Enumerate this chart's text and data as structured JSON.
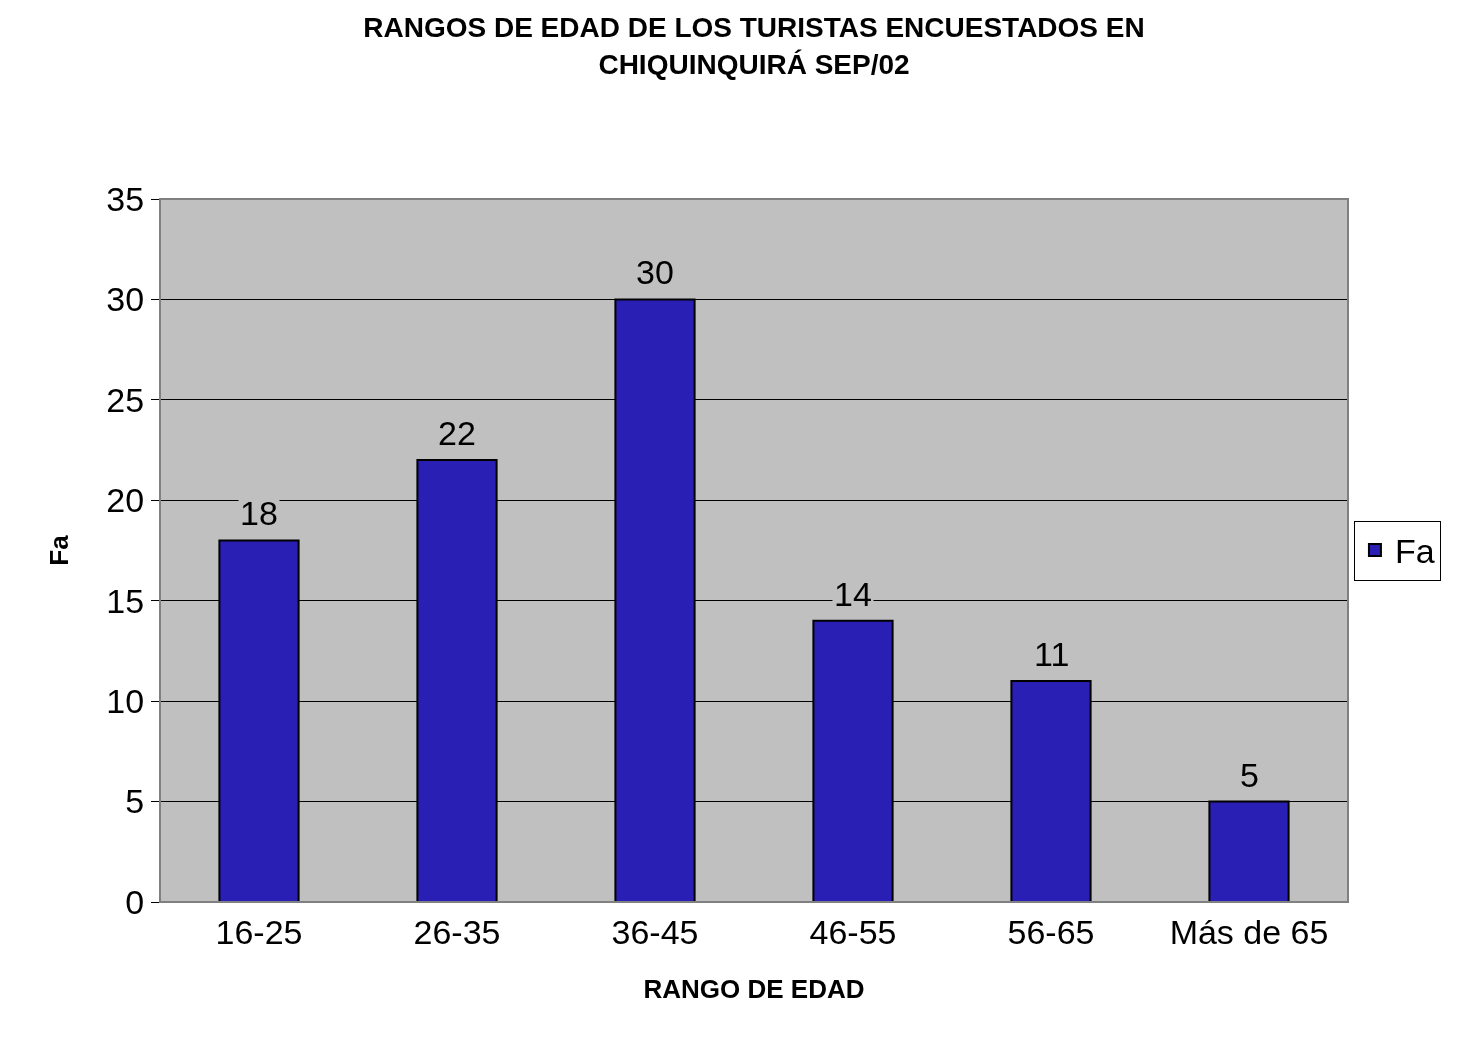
{
  "chart_data": {
    "type": "bar",
    "title": "RANGOS DE EDAD DE LOS TURISTAS ENCUESTADOS EN CHIQUINQUIRÁ SEP/02",
    "xlabel": "RANGO DE EDAD",
    "ylabel": "Fa",
    "categories": [
      "16-25",
      "26-35",
      "36-45",
      "46-55",
      "56-65",
      "Más de 65"
    ],
    "series": [
      {
        "name": "Fa",
        "color": "#2a1fb5",
        "values": [
          18,
          22,
          30,
          14,
          11,
          5
        ]
      }
    ],
    "ylim": [
      0,
      35
    ],
    "yticks": [
      0,
      5,
      10,
      15,
      20,
      25,
      30,
      35
    ],
    "grid": "y",
    "legend": "right",
    "data_labels": true
  }
}
